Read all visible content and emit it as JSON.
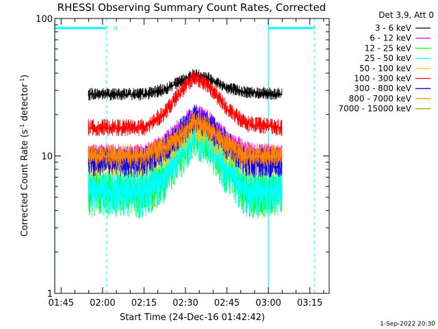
{
  "chart_data": {
    "type": "line",
    "title": "RHESSI Observing Summary Count Rates, Corrected",
    "xlabel": "Start Time (24-Dec-16 01:42:42)",
    "ylabel": "Corrected Count Rate (s⁻¹ detector⁻¹)",
    "ylabel_main": "Corrected Count Rate (s",
    "ylabel_sup1": "-1",
    "ylabel_mid": " detector",
    "ylabel_sup2": "-1",
    "ylabel_end": ")",
    "y_scale": "log",
    "ylim": [
      1,
      100
    ],
    "xlim": [
      "01:42:42",
      "03:22:00"
    ],
    "x_ticks": [
      "01:45",
      "02:00",
      "02:15",
      "02:30",
      "02:45",
      "03:00",
      "03:15"
    ],
    "y_ticks": [
      "1",
      "10",
      "100"
    ],
    "legend_title": "Det 3,9, Att 0",
    "legend_position": "right",
    "footer": "1-Sep-2022 20:30",
    "night_marker": "N",
    "series": [
      {
        "name": "3 - 6 keV",
        "color": "#000000",
        "x": [
          "01:55",
          "02:15",
          "02:22",
          "02:30",
          "02:33",
          "02:38",
          "02:45",
          "02:52",
          "03:05"
        ],
        "values": [
          28,
          28,
          30,
          36,
          39,
          37,
          31,
          29,
          28
        ]
      },
      {
        "name": "6 - 12 keV",
        "color": "#ff00ff",
        "x": [
          "01:55",
          "02:15",
          "02:22",
          "02:30",
          "02:33",
          "02:38",
          "02:45",
          "02:52",
          "03:05"
        ],
        "values": [
          10,
          10,
          12,
          17,
          20,
          18,
          13,
          10.5,
          10
        ]
      },
      {
        "name": "12 - 25 keV",
        "color": "#00ff00",
        "x": [
          "01:55",
          "02:15",
          "02:22",
          "02:30",
          "02:33",
          "02:38",
          "02:45",
          "02:52",
          "03:05"
        ],
        "values": [
          5.5,
          5.5,
          7,
          12,
          15,
          13,
          8,
          5.5,
          5.5
        ]
      },
      {
        "name": "25 - 50 keV",
        "color": "#00ffff",
        "x": [
          "01:55",
          "02:15",
          "02:22",
          "02:30",
          "02:33",
          "02:38",
          "02:45",
          "02:52",
          "03:05"
        ],
        "values": [
          5.5,
          5.5,
          7,
          12,
          15,
          13,
          8,
          5.5,
          5.5
        ]
      },
      {
        "name": "50 - 100 keV",
        "color": "#ffcc00",
        "x": [
          "01:55",
          "02:15",
          "02:22",
          "02:30",
          "02:33",
          "02:38",
          "02:45",
          "02:52",
          "03:05"
        ],
        "values": [
          9,
          9,
          10.5,
          14,
          17,
          15,
          11,
          9,
          9
        ]
      },
      {
        "name": "100 - 300 keV",
        "color": "#ff0000",
        "x": [
          "01:55",
          "02:15",
          "02:22",
          "02:30",
          "02:33",
          "02:38",
          "02:45",
          "02:52",
          "03:05"
        ],
        "values": [
          16,
          16,
          20,
          32,
          37,
          33,
          22,
          17,
          16
        ]
      },
      {
        "name": "300 - 800 keV",
        "color": "#0000ff",
        "x": [
          "01:55",
          "02:15",
          "02:22",
          "02:30",
          "02:33",
          "02:38",
          "02:45",
          "02:52",
          "03:05"
        ],
        "values": [
          9,
          9,
          11,
          16,
          19,
          17,
          12,
          9,
          9
        ]
      },
      {
        "name": "800 - 7000 keV",
        "color": "#ff8000",
        "x": [
          "01:55",
          "02:15",
          "02:22",
          "02:30",
          "02:33",
          "02:38",
          "02:45",
          "02:52",
          "03:05"
        ],
        "values": [
          10,
          10,
          11.5,
          15,
          18,
          16,
          12,
          10,
          10
        ]
      },
      {
        "name": "7000 - 15000 keV",
        "color": "#999900",
        "x": [],
        "values": []
      }
    ],
    "events": {
      "night_lines": [
        "01:42:42",
        "03:00:00"
      ],
      "saa_lines": [
        "02:01:30",
        "03:16:45"
      ],
      "night_bars": [
        [
          "01:42:42",
          "02:01:30"
        ],
        [
          "03:00:00",
          "03:16:45"
        ]
      ]
    }
  }
}
